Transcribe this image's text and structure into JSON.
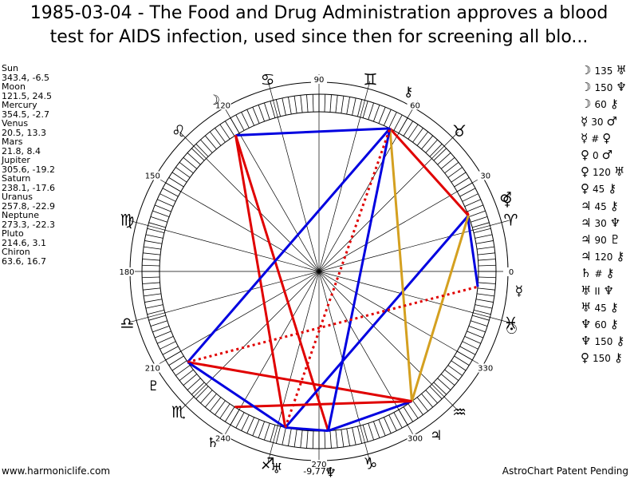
{
  "title_line1": "1985-03-04 - The Food and Drug Administration approves a blood",
  "title_line2": "test for AIDS infection, used since then for screening all blo...",
  "planets": [
    {
      "name": "Sun",
      "pos": "343.4, -6.5"
    },
    {
      "name": "Moon",
      "pos": "121.5, 24.5"
    },
    {
      "name": "Mercury",
      "pos": "354.5, -2.7"
    },
    {
      "name": "Venus",
      "pos": "20.5, 13.3"
    },
    {
      "name": "Mars",
      "pos": "21.8, 8.4"
    },
    {
      "name": "Jupiter",
      "pos": "305.6, -19.2"
    },
    {
      "name": "Saturn",
      "pos": "238.1, -17.6"
    },
    {
      "name": "Uranus",
      "pos": "257.8, -22.9"
    },
    {
      "name": "Neptune",
      "pos": "273.3, -22.3"
    },
    {
      "name": "Pluto",
      "pos": "214.6, 3.1"
    },
    {
      "name": "Chiron",
      "pos": "63.6, 16.7"
    }
  ],
  "aspects": [
    {
      "p1": "☽",
      "angle": "135",
      "p2": "♅"
    },
    {
      "p1": "☽",
      "angle": "150",
      "p2": "♆"
    },
    {
      "p1": "☽",
      "angle": "60",
      "p2": "⚷"
    },
    {
      "p1": "☿",
      "angle": "30",
      "p2": "♂"
    },
    {
      "p1": "☿",
      "angle": "#",
      "p2": "♀"
    },
    {
      "p1": "♀",
      "angle": "0",
      "p2": "♂"
    },
    {
      "p1": "♀",
      "angle": "120",
      "p2": "♅"
    },
    {
      "p1": "♀",
      "angle": "45",
      "p2": "⚷"
    },
    {
      "p1": "♃",
      "angle": "45",
      "p2": "⚷"
    },
    {
      "p1": "♃",
      "angle": "30",
      "p2": "♆"
    },
    {
      "p1": "♃",
      "angle": "90",
      "p2": "♇"
    },
    {
      "p1": "♃",
      "angle": "120",
      "p2": "⚷"
    },
    {
      "p1": "♄",
      "angle": "#",
      "p2": "⚷"
    },
    {
      "p1": "♅",
      "angle": "II",
      "p2": "♆"
    },
    {
      "p1": "♅",
      "angle": "45",
      "p2": "⚷"
    },
    {
      "p1": "♆",
      "angle": "60",
      "p2": "⚷"
    },
    {
      "p1": "♆",
      "angle": "150",
      "p2": "⚷"
    },
    {
      "p1": "♀",
      "angle": "150",
      "p2": "⚷"
    }
  ],
  "wheel": {
    "degree_labels": {
      "d0": "0",
      "d30": "30",
      "d60": "60",
      "d90": "90",
      "d120": "120",
      "d150": "150",
      "d180": "180",
      "d210": "210",
      "d240": "240",
      "d270": "270",
      "d300": "300",
      "d330": "330"
    },
    "sign_glyphs": {
      "aries": "♈",
      "taurus": "♉",
      "gemini": "♊",
      "cancer": "♋",
      "leo": "♌",
      "virgo": "♍",
      "libra": "♎",
      "scorpio": "♏",
      "sagittarius": "♐",
      "capricorn": "♑",
      "aquarius": "♒",
      "pisces": "♓"
    },
    "planet_glyphs": {
      "sun": "☉",
      "moon": "☽",
      "mercury": "☿",
      "venus": "♀",
      "mars": "♂",
      "jupiter": "♃",
      "saturn": "♄",
      "uranus": "♅",
      "neptune": "♆",
      "pluto": "♇",
      "chiron": "⚷"
    },
    "bottom_value": "-9,777",
    "colors": {
      "red": "#e00000",
      "blue": "#0000e0",
      "gold": "#d4a020"
    }
  },
  "footer_left": "www.harmoniclife.com",
  "footer_right": "AstroChart Patent Pending"
}
